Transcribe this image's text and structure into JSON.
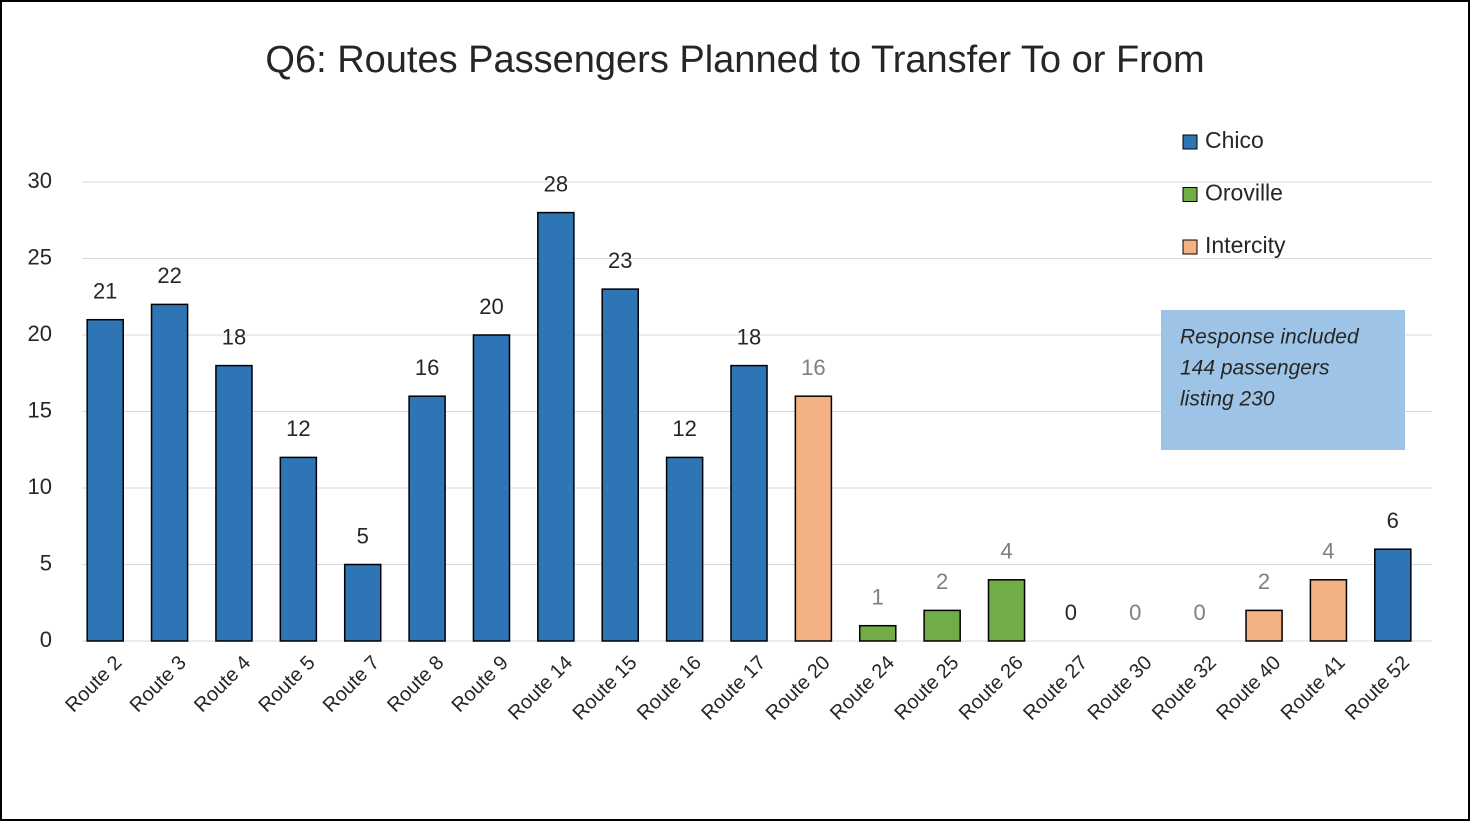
{
  "chart_data": {
    "type": "bar",
    "title": "Q6: Routes Passengers Planned to Transfer To or From",
    "categories": [
      "Route 2",
      "Route 3",
      "Route 4",
      "Route 5",
      "Route 7",
      "Route 8",
      "Route 9",
      "Route 14",
      "Route 15",
      "Route 16",
      "Route 17",
      "Route 20",
      "Route 24",
      "Route 25",
      "Route 26",
      "Route 27",
      "Route 30",
      "Route 32",
      "Route 40",
      "Route 41",
      "Route 52"
    ],
    "series": [
      {
        "name": "Chico",
        "color": "#2e75b6",
        "label_color": "#262626",
        "values": [
          21,
          22,
          18,
          12,
          5,
          16,
          20,
          28,
          23,
          12,
          18,
          null,
          null,
          null,
          null,
          0,
          null,
          null,
          null,
          null,
          6
        ]
      },
      {
        "name": "Oroville",
        "color": "#70ad47",
        "label_color": "#7f7f7f",
        "values": [
          null,
          null,
          null,
          null,
          null,
          null,
          null,
          null,
          null,
          null,
          null,
          null,
          1,
          2,
          4,
          null,
          0,
          0,
          null,
          null,
          null
        ]
      },
      {
        "name": "Intercity",
        "color": "#f4b183",
        "label_color": "#7f7f7f",
        "values": [
          null,
          null,
          null,
          null,
          null,
          null,
          null,
          null,
          null,
          null,
          null,
          16,
          null,
          null,
          null,
          null,
          null,
          null,
          2,
          4,
          null
        ]
      }
    ],
    "ylim": [
      0,
      30
    ],
    "yticks": [
      0,
      5,
      10,
      15,
      20,
      25,
      30
    ],
    "grid": true,
    "legend": "upper right",
    "annotation": [
      "Response included",
      "144 passengers",
      "listing 230"
    ],
    "annotation_color": "#9dc3e6"
  }
}
